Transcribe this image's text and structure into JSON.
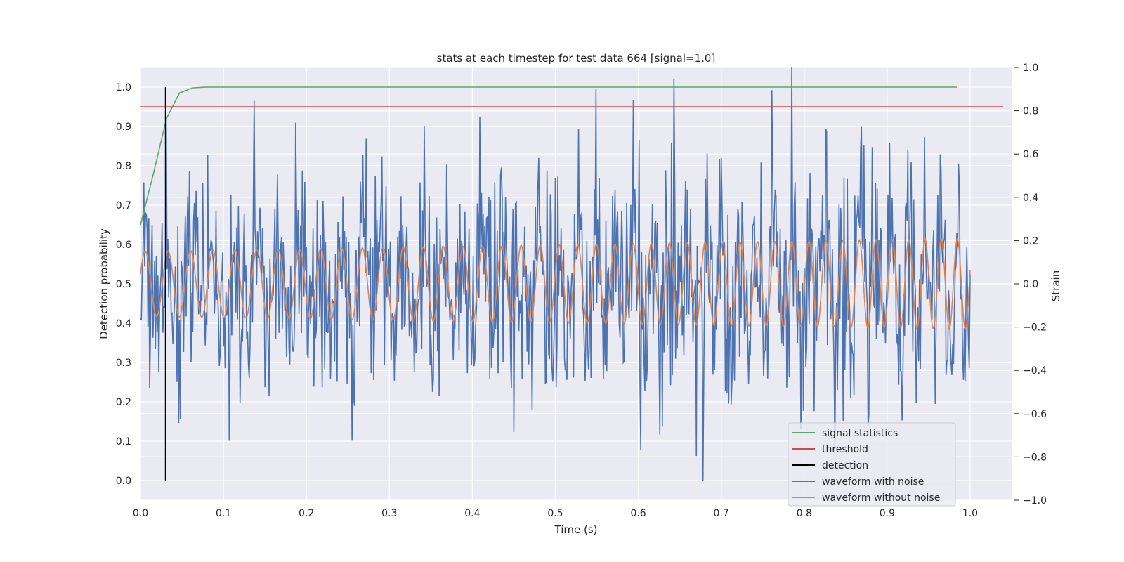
{
  "chart_data": {
    "type": "line",
    "title": "stats at each timestep for test data 664 [signal=1.0]",
    "xlabel": "Time (s)",
    "ylabel_left": "Detection probability",
    "ylabel_right": "Strain",
    "xlim": [
      0.0,
      1.05
    ],
    "ylim_left": [
      -0.05,
      1.05
    ],
    "ylim_right": [
      -1.0,
      1.0
    ],
    "x_ticks": [
      "0.0",
      "0.1",
      "0.2",
      "0.3",
      "0.4",
      "0.5",
      "0.6",
      "0.7",
      "0.8",
      "0.9",
      "1.0"
    ],
    "y_left_ticks": [
      "0.0",
      "0.1",
      "0.2",
      "0.3",
      "0.4",
      "0.5",
      "0.6",
      "0.7",
      "0.8",
      "0.9",
      "1.0"
    ],
    "y_right_ticks": [
      "−1.0",
      "−0.8",
      "−0.6",
      "−0.4",
      "−0.2",
      "0.0",
      "0.2",
      "0.4",
      "0.6",
      "0.8",
      "1.0"
    ],
    "grid": true,
    "legend_position": "bottom-right",
    "colors": {
      "signal_statistics": "#55a868",
      "threshold": "#c44e52",
      "detection": "#000000",
      "waveform_with_noise": "#4c72b0",
      "waveform_without_noise": "#dd8452"
    },
    "series": [
      {
        "name": "signal statistics",
        "axis": "left",
        "x": [
          0.0,
          0.0156,
          0.0313,
          0.0469,
          0.0625,
          0.0781,
          0.1,
          0.2,
          0.3,
          0.4,
          0.5,
          0.6,
          0.7,
          0.8,
          0.9,
          0.984
        ],
        "y": [
          0.65,
          0.78,
          0.92,
          0.985,
          0.998,
          1.0,
          1.0,
          1.0,
          1.0,
          1.0,
          1.0,
          1.0,
          1.0,
          1.0,
          1.0,
          1.0
        ]
      },
      {
        "name": "threshold",
        "axis": "left",
        "x": [
          0.0,
          1.04
        ],
        "y": [
          0.95,
          0.95
        ]
      },
      {
        "name": "detection",
        "axis": "left",
        "type": "vline",
        "x": 0.0303,
        "y": [
          0.0,
          1.0
        ]
      },
      {
        "name": "waveform with noise",
        "axis": "right",
        "description_of_values": "noisy strain, roughly within -0.9 to 1.0, 1 s sampled",
        "x_range": [
          0.0,
          1.0
        ],
        "samples": 1000,
        "noise_amplitude": 0.25,
        "peak": {
          "x": 0.785,
          "y": 1.0
        },
        "trough": {
          "x": 0.678,
          "y": -0.91
        }
      },
      {
        "name": "waveform without noise",
        "axis": "right",
        "description_of_values": "chirp sinusoid with slowly increasing frequency and amplitude",
        "x_range": [
          0.0,
          1.0
        ],
        "amplitude_start": 0.15,
        "amplitude_end": 0.21,
        "frequency_start_hz": 36,
        "frequency_end_hz": 52
      }
    ]
  },
  "legend": {
    "items": [
      {
        "label": "signal statistics",
        "color": "#55a868"
      },
      {
        "label": "threshold",
        "color": "#c44e52"
      },
      {
        "label": "detection",
        "color": "#000000"
      },
      {
        "label": "waveform with noise",
        "color": "#4c72b0"
      },
      {
        "label": "waveform without noise",
        "color": "#dd8452"
      }
    ]
  }
}
